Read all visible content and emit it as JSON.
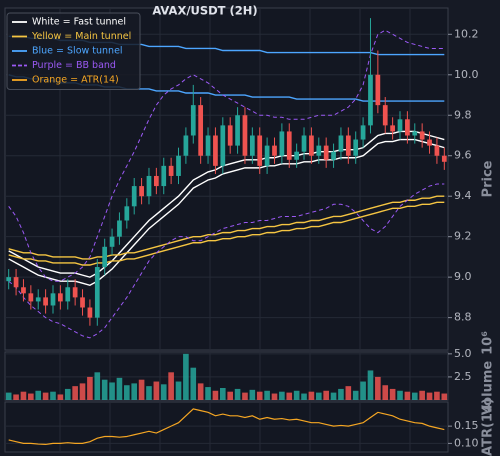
{
  "chart_data": [
    {
      "type": "candlestick",
      "title": "AVAX/USDT (2H)",
      "ylabel": "Price",
      "up_color": "#26a69a",
      "down_color": "#ef5350",
      "grid": true,
      "ylim": [
        8.64,
        10.33
      ],
      "yticks": [
        8.8,
        {
          "value": 9.0,
          "label": "9.0"
        },
        9.2,
        9.4,
        9.6,
        9.8,
        {
          "value": 10.0,
          "label": "10.0"
        },
        10.2
      ],
      "open": [
        8.98,
        9.0,
        8.95,
        8.92,
        8.88,
        8.9,
        8.86,
        8.92,
        8.88,
        8.95,
        8.9,
        8.85,
        8.8,
        9.05,
        9.15,
        9.2,
        9.28,
        9.35,
        9.45,
        9.4,
        9.5,
        9.45,
        9.55,
        9.5,
        9.6,
        9.7,
        9.85,
        9.6,
        9.7,
        9.55,
        9.75,
        9.65,
        9.8,
        9.6,
        9.7,
        9.55,
        9.65,
        9.6,
        9.72,
        9.58,
        9.62,
        9.7,
        9.6,
        9.65,
        9.58,
        9.62,
        9.7,
        9.6,
        9.68,
        9.75,
        10.0,
        9.85,
        9.75,
        9.72,
        9.78,
        9.7,
        9.72,
        9.68,
        9.65,
        9.6
      ],
      "high": [
        9.04,
        9.04,
        8.99,
        8.96,
        8.94,
        8.94,
        8.96,
        8.96,
        8.99,
        8.99,
        8.94,
        8.89,
        9.09,
        9.19,
        9.24,
        9.32,
        9.39,
        9.49,
        9.49,
        9.54,
        9.54,
        9.59,
        9.59,
        9.64,
        9.74,
        9.95,
        9.89,
        9.74,
        9.74,
        9.79,
        9.79,
        9.84,
        9.84,
        9.74,
        9.74,
        9.69,
        9.69,
        9.76,
        9.76,
        9.66,
        9.74,
        9.74,
        9.69,
        9.69,
        9.66,
        9.74,
        9.74,
        9.72,
        9.79,
        10.28,
        10.12,
        9.89,
        9.79,
        9.82,
        9.82,
        9.76,
        9.76,
        9.72,
        9.69,
        9.64
      ],
      "low": [
        8.94,
        8.91,
        8.88,
        8.84,
        8.84,
        8.82,
        8.82,
        8.84,
        8.84,
        8.86,
        8.81,
        8.76,
        8.76,
        9.01,
        9.11,
        9.16,
        9.24,
        9.31,
        9.36,
        9.36,
        9.41,
        9.41,
        9.46,
        9.46,
        9.56,
        9.66,
        9.56,
        9.56,
        9.51,
        9.51,
        9.61,
        9.61,
        9.56,
        9.56,
        9.51,
        9.51,
        9.56,
        9.56,
        9.54,
        9.54,
        9.58,
        9.56,
        9.56,
        9.54,
        9.54,
        9.58,
        9.56,
        9.56,
        9.64,
        9.71,
        9.81,
        9.71,
        9.68,
        9.68,
        9.66,
        9.66,
        9.64,
        9.61,
        9.56,
        9.53
      ],
      "close": [
        9.0,
        8.95,
        8.92,
        8.88,
        8.9,
        8.86,
        8.92,
        8.88,
        8.95,
        8.9,
        8.85,
        8.8,
        9.05,
        9.15,
        9.2,
        9.28,
        9.35,
        9.45,
        9.4,
        9.5,
        9.45,
        9.55,
        9.5,
        9.6,
        9.7,
        9.85,
        9.6,
        9.7,
        9.55,
        9.75,
        9.65,
        9.8,
        9.6,
        9.7,
        9.55,
        9.65,
        9.6,
        9.72,
        9.58,
        9.62,
        9.7,
        9.6,
        9.65,
        9.58,
        9.62,
        9.7,
        9.6,
        9.68,
        9.75,
        10.0,
        9.85,
        9.75,
        9.72,
        9.78,
        9.7,
        9.72,
        9.68,
        9.65,
        9.6,
        9.57
      ],
      "series": [
        {
          "name": "White = Fast tunnel",
          "color": "#ffffff",
          "upper": [
            9.13,
            9.11,
            9.09,
            9.07,
            9.05,
            9.04,
            9.03,
            9.02,
            9.02,
            9.02,
            9.01,
            9.0,
            9.02,
            9.05,
            9.08,
            9.12,
            9.16,
            9.2,
            9.24,
            9.28,
            9.31,
            9.34,
            9.37,
            9.4,
            9.44,
            9.48,
            9.5,
            9.52,
            9.53,
            9.55,
            9.56,
            9.57,
            9.58,
            9.58,
            9.58,
            9.59,
            9.59,
            9.6,
            9.6,
            9.6,
            9.61,
            9.61,
            9.62,
            9.62,
            9.62,
            9.63,
            9.63,
            9.63,
            9.64,
            9.67,
            9.7,
            9.71,
            9.71,
            9.72,
            9.72,
            9.72,
            9.71,
            9.7,
            9.69,
            9.68
          ],
          "lower": [
            9.09,
            9.07,
            9.05,
            9.03,
            9.01,
            9.0,
            8.99,
            8.98,
            8.98,
            8.98,
            8.97,
            8.96,
            8.98,
            9.01,
            9.04,
            9.08,
            9.12,
            9.16,
            9.2,
            9.24,
            9.27,
            9.3,
            9.33,
            9.36,
            9.4,
            9.44,
            9.46,
            9.48,
            9.49,
            9.51,
            9.52,
            9.53,
            9.54,
            9.54,
            9.54,
            9.55,
            9.55,
            9.56,
            9.56,
            9.56,
            9.57,
            9.57,
            9.58,
            9.58,
            9.58,
            9.59,
            9.59,
            9.59,
            9.6,
            9.63,
            9.66,
            9.67,
            9.67,
            9.68,
            9.68,
            9.68,
            9.67,
            9.66,
            9.65,
            9.64
          ]
        },
        {
          "name": "Yellow = Main tunnel",
          "color": "#f5c542",
          "upper": [
            9.14,
            9.13,
            9.12,
            9.12,
            9.11,
            9.11,
            9.1,
            9.1,
            9.1,
            9.1,
            9.09,
            9.09,
            9.1,
            9.1,
            9.11,
            9.11,
            9.12,
            9.12,
            9.13,
            9.14,
            9.15,
            9.16,
            9.17,
            9.18,
            9.19,
            9.2,
            9.2,
            9.21,
            9.21,
            9.22,
            9.22,
            9.23,
            9.23,
            9.24,
            9.24,
            9.25,
            9.25,
            9.26,
            9.26,
            9.27,
            9.27,
            9.28,
            9.28,
            9.29,
            9.3,
            9.3,
            9.31,
            9.32,
            9.33,
            9.34,
            9.35,
            9.36,
            9.37,
            9.37,
            9.38,
            9.38,
            9.39,
            9.39,
            9.4,
            9.4
          ],
          "lower": [
            9.11,
            9.1,
            9.09,
            9.09,
            9.08,
            9.08,
            9.07,
            9.07,
            9.07,
            9.07,
            9.06,
            9.06,
            9.07,
            9.07,
            9.08,
            9.08,
            9.09,
            9.09,
            9.1,
            9.11,
            9.12,
            9.13,
            9.14,
            9.15,
            9.16,
            9.17,
            9.17,
            9.18,
            9.18,
            9.19,
            9.19,
            9.2,
            9.2,
            9.21,
            9.21,
            9.22,
            9.22,
            9.23,
            9.23,
            9.24,
            9.24,
            9.25,
            9.25,
            9.26,
            9.27,
            9.27,
            9.28,
            9.29,
            9.3,
            9.31,
            9.32,
            9.33,
            9.34,
            9.34,
            9.35,
            9.35,
            9.36,
            9.36,
            9.37,
            9.37
          ]
        },
        {
          "name": "Blue = Slow tunnel",
          "color": "#4da6ff",
          "upper": [
            10.19,
            10.19,
            10.19,
            10.18,
            10.18,
            10.18,
            10.18,
            10.17,
            10.17,
            10.17,
            10.17,
            10.16,
            10.16,
            10.16,
            10.16,
            10.15,
            10.15,
            10.15,
            10.15,
            10.14,
            10.14,
            10.14,
            10.14,
            10.14,
            10.13,
            10.13,
            10.13,
            10.13,
            10.13,
            10.12,
            10.12,
            10.12,
            10.12,
            10.12,
            10.12,
            10.11,
            10.11,
            10.11,
            10.11,
            10.11,
            10.11,
            10.11,
            10.11,
            10.11,
            10.11,
            10.11,
            10.11,
            10.11,
            10.11,
            10.11,
            10.1,
            10.1,
            10.1,
            10.1,
            10.1,
            10.1,
            10.1,
            10.1,
            10.1,
            10.1
          ],
          "lower": [
            10.0,
            9.99,
            9.99,
            9.98,
            9.98,
            9.97,
            9.97,
            9.96,
            9.96,
            9.96,
            9.95,
            9.95,
            9.95,
            9.94,
            9.94,
            9.94,
            9.93,
            9.93,
            9.93,
            9.93,
            9.92,
            9.92,
            9.92,
            9.92,
            9.91,
            9.91,
            9.91,
            9.91,
            9.9,
            9.9,
            9.9,
            9.9,
            9.9,
            9.89,
            9.89,
            9.89,
            9.89,
            9.89,
            9.89,
            9.88,
            9.88,
            9.88,
            9.88,
            9.88,
            9.88,
            9.88,
            9.88,
            9.88,
            9.87,
            9.87,
            9.87,
            9.87,
            9.87,
            9.87,
            9.87,
            9.87,
            9.87,
            9.87,
            9.87,
            9.87
          ]
        },
        {
          "name": "Purple = BB band",
          "color": "#9b59f5",
          "dash": true,
          "upper": [
            9.35,
            9.3,
            9.22,
            9.12,
            9.05,
            9.0,
            8.98,
            8.98,
            9.0,
            9.02,
            9.05,
            9.1,
            9.2,
            9.3,
            9.4,
            9.48,
            9.55,
            9.62,
            9.7,
            9.78,
            9.85,
            9.9,
            9.93,
            9.95,
            9.98,
            10.0,
            9.98,
            9.96,
            9.93,
            9.9,
            9.88,
            9.86,
            9.84,
            9.82,
            9.8,
            9.8,
            9.79,
            9.79,
            9.78,
            9.78,
            9.78,
            9.79,
            9.8,
            9.8,
            9.8,
            9.82,
            9.84,
            9.88,
            9.95,
            10.1,
            10.2,
            10.22,
            10.2,
            10.18,
            10.16,
            10.15,
            10.14,
            10.13,
            10.13,
            10.13
          ],
          "lower": [
            8.98,
            8.95,
            8.9,
            8.86,
            8.83,
            8.8,
            8.78,
            8.77,
            8.75,
            8.73,
            8.71,
            8.7,
            8.72,
            8.75,
            8.8,
            8.85,
            8.9,
            8.96,
            9.02,
            9.08,
            9.12,
            9.15,
            9.18,
            9.2,
            9.2,
            9.18,
            9.18,
            9.2,
            9.22,
            9.24,
            9.25,
            9.26,
            9.27,
            9.27,
            9.28,
            9.28,
            9.29,
            9.3,
            9.3,
            9.3,
            9.31,
            9.32,
            9.33,
            9.34,
            9.36,
            9.36,
            9.35,
            9.32,
            9.28,
            9.24,
            9.22,
            9.25,
            9.3,
            9.35,
            9.38,
            9.41,
            9.43,
            9.45,
            9.46,
            9.46
          ]
        }
      ]
    },
    {
      "type": "bar",
      "ylabel": "Volume",
      "offset_label": "10⁶",
      "grid": true,
      "ylim": [
        0,
        5.2
      ],
      "yticks": [
        2.5,
        {
          "value": 5.0,
          "label": "5.0"
        }
      ],
      "values": [
        0.8,
        0.6,
        0.9,
        0.7,
        1.0,
        0.8,
        0.9,
        0.6,
        1.2,
        1.5,
        1.8,
        2.5,
        3.0,
        2.2,
        1.9,
        2.4,
        1.6,
        1.8,
        2.2,
        1.5,
        2.0,
        1.7,
        3.0,
        2.0,
        5.0,
        3.5,
        1.8,
        1.4,
        1.0,
        1.3,
        0.9,
        1.2,
        0.8,
        1.1,
        0.9,
        1.0,
        0.7,
        0.9,
        0.8,
        1.0,
        0.7,
        0.9,
        0.8,
        1.0,
        0.8,
        1.2,
        1.5,
        1.0,
        2.0,
        3.2,
        2.5,
        1.6,
        1.2,
        1.0,
        0.9,
        0.8,
        1.0,
        0.8,
        0.9,
        0.7
      ]
    },
    {
      "type": "line",
      "ylabel": "ATR(14)",
      "grid": true,
      "ylim": [
        0.075,
        0.22
      ],
      "yticks": [
        {
          "value": 0.1,
          "label": "0.10"
        },
        0.15
      ],
      "series": [
        {
          "name": "Orange = ATR(14)",
          "color": "#f5a623",
          "values": [
            0.11,
            0.105,
            0.1,
            0.1,
            0.098,
            0.097,
            0.1,
            0.1,
            0.102,
            0.1,
            0.1,
            0.105,
            0.115,
            0.12,
            0.12,
            0.118,
            0.12,
            0.125,
            0.13,
            0.135,
            0.13,
            0.14,
            0.15,
            0.16,
            0.18,
            0.2,
            0.195,
            0.19,
            0.18,
            0.185,
            0.18,
            0.18,
            0.175,
            0.18,
            0.17,
            0.175,
            0.17,
            0.172,
            0.168,
            0.17,
            0.165,
            0.16,
            0.16,
            0.155,
            0.15,
            0.152,
            0.15,
            0.155,
            0.16,
            0.175,
            0.19,
            0.185,
            0.18,
            0.17,
            0.165,
            0.16,
            0.158,
            0.15,
            0.145,
            0.14
          ]
        }
      ]
    }
  ]
}
